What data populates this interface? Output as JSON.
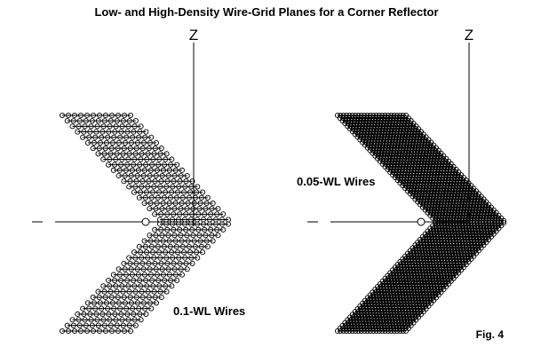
{
  "figure": {
    "title": "Low- and High-Density Wire-Grid Planes for a Corner Reflector",
    "fig_label": "Fig. 4"
  },
  "left_panel": {
    "axis_label": "Z",
    "wire_label": "0.1-WL Wires",
    "rows_per_half": 20,
    "circles_per_row": 12
  },
  "right_panel": {
    "axis_label": "Z",
    "wire_label": "0.05-WL Wires",
    "rows_per_half": 40,
    "circles_per_row": 24
  },
  "colors": {
    "ink": "#000000",
    "background": "#ffffff"
  }
}
